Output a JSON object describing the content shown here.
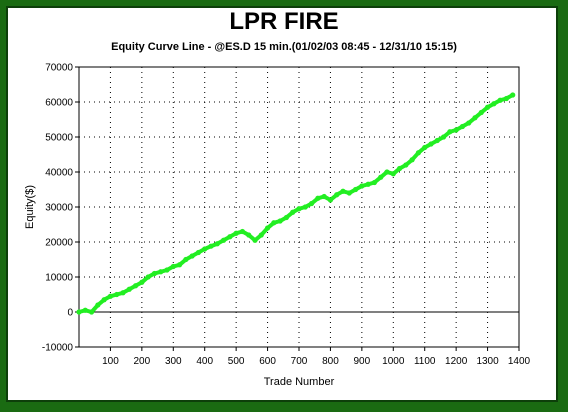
{
  "chart_data": {
    "type": "line",
    "title": "LPR FIRE",
    "subtitle": "Equity Curve Line - @ES.D 15 min.(01/02/03 08:45 - 12/31/10 15:15)",
    "xlabel": "Trade Number",
    "ylabel": "Equity($)",
    "xlim": [
      0,
      1400
    ],
    "ylim": [
      -10000,
      70000
    ],
    "x_ticks": [
      100,
      200,
      300,
      400,
      500,
      600,
      700,
      800,
      900,
      1000,
      1100,
      1200,
      1300,
      1400
    ],
    "y_ticks": [
      -10000,
      0,
      10000,
      20000,
      30000,
      40000,
      50000,
      60000,
      70000
    ],
    "x_tick_labels": [
      "100",
      "200",
      "300",
      "400",
      "500",
      "600",
      "700",
      "800",
      "900",
      "1000",
      "1100",
      "1200",
      "1300",
      "1400"
    ],
    "y_tick_labels": [
      "-10000",
      "0",
      "10000",
      "20000",
      "30000",
      "40000",
      "50000",
      "60000",
      "70000"
    ],
    "grid": true,
    "series_color": "#22ee22",
    "series": [
      {
        "x": [
          0,
          20,
          40,
          60,
          80,
          100,
          120,
          140,
          160,
          180,
          200,
          220,
          240,
          260,
          280,
          300,
          320,
          340,
          360,
          380,
          400,
          420,
          440,
          460,
          480,
          500,
          520,
          540,
          560,
          580,
          600,
          620,
          640,
          660,
          680,
          700,
          720,
          740,
          760,
          780,
          800,
          820,
          840,
          860,
          880,
          900,
          920,
          940,
          960,
          980,
          1000,
          1020,
          1040,
          1060,
          1080,
          1100,
          1120,
          1140,
          1160,
          1180,
          1200,
          1220,
          1240,
          1260,
          1280,
          1300,
          1320,
          1340,
          1360,
          1380
        ],
        "values": [
          0,
          500,
          0,
          2000,
          3500,
          4500,
          5000,
          5500,
          6500,
          7500,
          8500,
          10000,
          11000,
          11500,
          12000,
          13000,
          13500,
          15000,
          16000,
          17000,
          18000,
          18800,
          19500,
          20500,
          21500,
          22500,
          23000,
          22000,
          20500,
          22000,
          24000,
          25500,
          26000,
          27000,
          28500,
          29500,
          30000,
          31000,
          32500,
          33000,
          32000,
          33500,
          34500,
          34000,
          35000,
          36000,
          36500,
          37000,
          38500,
          40000,
          39500,
          41000,
          42000,
          43500,
          45500,
          47000,
          48000,
          49000,
          50000,
          51500,
          52000,
          53000,
          54000,
          55500,
          57000,
          58500,
          59500,
          60500,
          61000,
          62000
        ]
      }
    ]
  }
}
